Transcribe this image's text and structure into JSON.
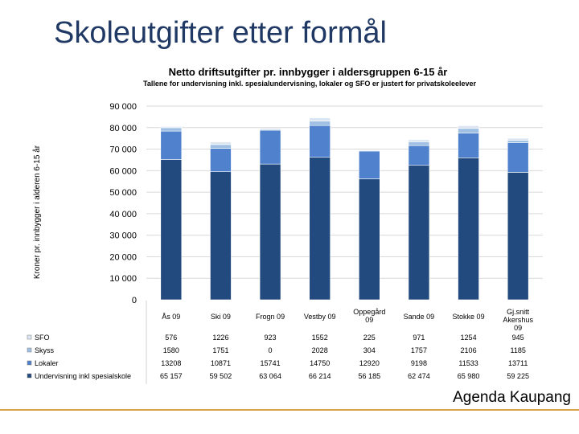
{
  "slide": {
    "title": "Skoleutgifter etter formål",
    "footer": "Agenda Kaupang"
  },
  "chart_data": {
    "type": "bar",
    "stacked": true,
    "title": "Netto driftsutgifter pr. innbygger i aldersgruppen 6-15 år",
    "subtitle": "Tallene for undervisning inkl. spesialundervisning, lokaler og SFO er justert for privatskoleelever",
    "ylabel": "Kroner pr. innbygger i alderen 6-15 år",
    "xlabel": "",
    "ylim": [
      0,
      90000
    ],
    "yticks": [
      0,
      10000,
      20000,
      30000,
      40000,
      50000,
      60000,
      70000,
      80000,
      90000
    ],
    "ytick_labels": [
      "0",
      "10 000",
      "20 000",
      "30 000",
      "40 000",
      "50 000",
      "60 000",
      "70 000",
      "80 000",
      "90 000"
    ],
    "grid": true,
    "categories": [
      "Ås 09",
      "Ski 09",
      "Frogn 09",
      "Vestby 09",
      "Oppegård 09",
      "Sande 09",
      "Stokke 09",
      "Gj.snitt Akershus 09"
    ],
    "series": [
      {
        "name": "Undervisning inkl spesialskole",
        "color": "#234a7e",
        "values": [
          65157,
          59502,
          63064,
          66214,
          56185,
          62474,
          65980,
          59225
        ],
        "labels": [
          "65 157",
          "59 502",
          "63 064",
          "66 214",
          "56 185",
          "62 474",
          "65 980",
          "59 225"
        ]
      },
      {
        "name": "Lokaler",
        "color": "#4f81cc",
        "values": [
          13208,
          10871,
          15741,
          14750,
          12920,
          9198,
          11533,
          13711
        ],
        "labels": [
          "13208",
          "10871",
          "15741",
          "14750",
          "12920",
          "9198",
          "11533",
          "13711"
        ]
      },
      {
        "name": "Skyss",
        "color": "#9fbfe3",
        "values": [
          1580,
          1751,
          0,
          2028,
          304,
          1757,
          2106,
          1185
        ],
        "labels": [
          "1580",
          "1751",
          "0",
          "2028",
          "304",
          "1757",
          "2106",
          "1185"
        ]
      },
      {
        "name": "SFO",
        "color": "#dce6f2",
        "values": [
          576,
          1226,
          923,
          1552,
          225,
          971,
          1254,
          945
        ],
        "labels": [
          "576",
          "1226",
          "923",
          "1552",
          "225",
          "971",
          "1254",
          "945"
        ]
      }
    ],
    "table_row_order": [
      3,
      2,
      1,
      0
    ],
    "legend": "bottom-table"
  }
}
